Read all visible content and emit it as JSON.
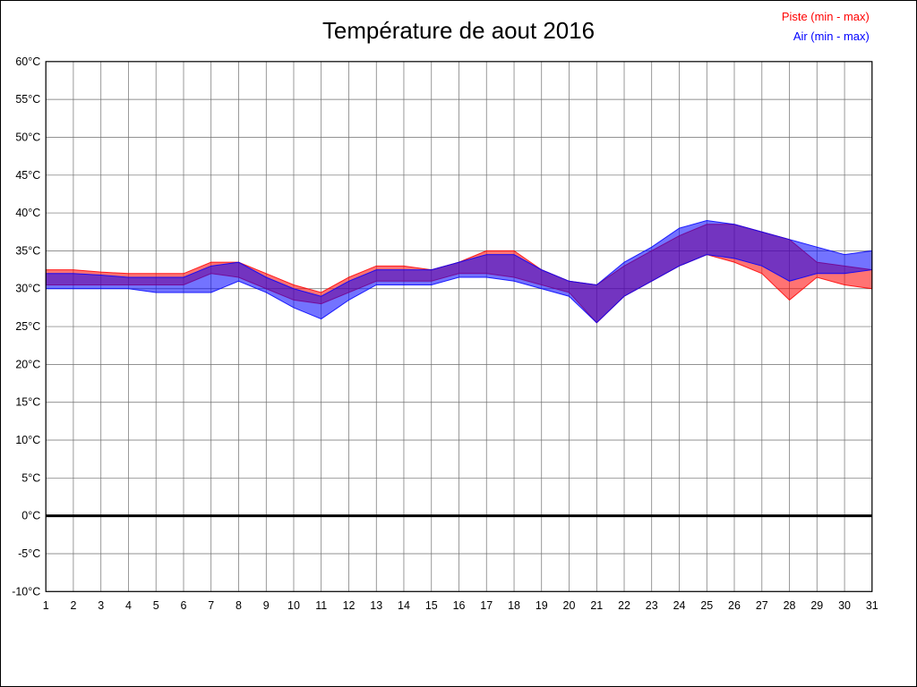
{
  "page": {
    "title": "Température de aout 2016"
  },
  "chart_data": {
    "type": "area",
    "title": "Température de aout 2016",
    "xlabel": "",
    "ylabel": "",
    "ylim": [
      -10,
      60
    ],
    "grid": true,
    "legend_position": "top-right",
    "zero_line_value": 0,
    "categories": [
      "1",
      "2",
      "3",
      "4",
      "5",
      "6",
      "7",
      "8",
      "9",
      "10",
      "11",
      "12",
      "13",
      "14",
      "15",
      "16",
      "17",
      "18",
      "19",
      "20",
      "21",
      "22",
      "23",
      "24",
      "25",
      "26",
      "27",
      "28",
      "29",
      "30",
      "31"
    ],
    "ytick_values": [
      60,
      55,
      50,
      45,
      40,
      35,
      30,
      25,
      20,
      15,
      10,
      5,
      0,
      -5,
      -10
    ],
    "ytick_labels": [
      "60°C",
      "55°C",
      "50°C",
      "45°C",
      "40°C",
      "35°C",
      "30°C",
      "25°C",
      "20°C",
      "15°C",
      "10°C",
      "5°C",
      "0°C",
      "-5°C",
      "-10°C"
    ],
    "series": [
      {
        "id": "piste",
        "name": "Piste (min - max)",
        "color": "#ff0000",
        "min": [
          30.5,
          30.5,
          30.5,
          30.5,
          30.5,
          30.5,
          32,
          31.5,
          30,
          28.5,
          28,
          29.5,
          31,
          31,
          31,
          32,
          32,
          31.5,
          30.5,
          29.5,
          25.5,
          29,
          31,
          33,
          34.5,
          33.5,
          32,
          28.5,
          31.5,
          30.5,
          30
        ],
        "max": [
          32.5,
          32.5,
          32.2,
          32,
          32,
          32,
          33.5,
          33.5,
          32,
          30.5,
          29.5,
          31.5,
          33,
          33,
          32.5,
          33.5,
          35,
          35,
          32.5,
          31,
          30.5,
          33,
          35,
          37,
          38.5,
          38.5,
          37.5,
          36.5,
          33.5,
          33,
          32.5
        ]
      },
      {
        "id": "air",
        "name": "Air (min - max)",
        "color": "#0000ff",
        "min": [
          30,
          30,
          30,
          30,
          29.5,
          29.5,
          29.5,
          31,
          29.5,
          27.5,
          26,
          28.5,
          30.5,
          30.5,
          30.5,
          31.5,
          31.5,
          31,
          30,
          29,
          25.5,
          29,
          31,
          33,
          34.5,
          34,
          33,
          31,
          32,
          32,
          32.5
        ],
        "max": [
          32,
          32,
          31.8,
          31.5,
          31.5,
          31.5,
          33,
          33.5,
          31.5,
          30,
          29,
          31,
          32.5,
          32.5,
          32.5,
          33.5,
          34.5,
          34.5,
          32.5,
          31,
          30.5,
          33.5,
          35.5,
          38,
          39,
          38.5,
          37.5,
          36.5,
          35.5,
          34.5,
          35
        ]
      }
    ]
  }
}
